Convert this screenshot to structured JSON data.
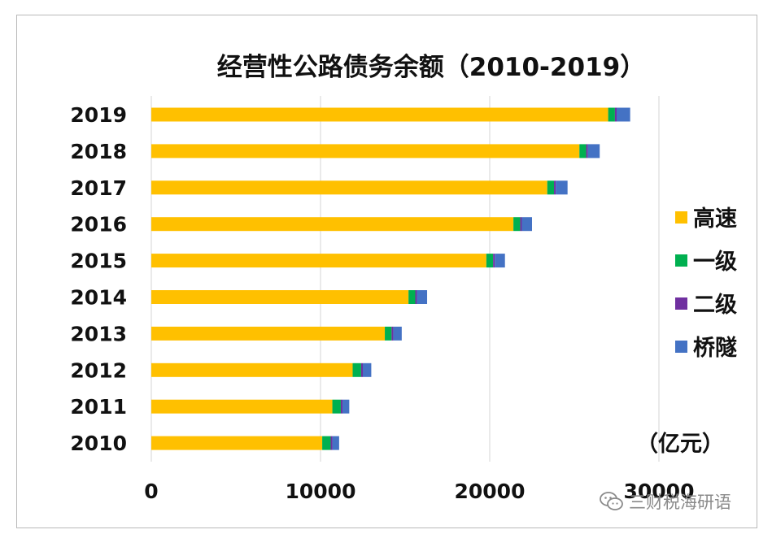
{
  "chart_data": {
    "type": "bar",
    "orientation": "horizontal",
    "stacked": true,
    "title": "经营性公路债务余额（2010-2019）",
    "unit_label": "（亿元）",
    "categories": [
      "2010",
      "2011",
      "2012",
      "2013",
      "2014",
      "2015",
      "2016",
      "2017",
      "2018",
      "2019"
    ],
    "series": [
      {
        "name": "高速",
        "color": "#FFC000",
        "values": [
          10100,
          10700,
          11900,
          13800,
          15200,
          19800,
          21400,
          23400,
          25300,
          27000
        ]
      },
      {
        "name": "一级",
        "color": "#00B050",
        "values": [
          500,
          500,
          500,
          400,
          400,
          400,
          400,
          400,
          400,
          400
        ]
      },
      {
        "name": "二级",
        "color": "#7030A0",
        "values": [
          100,
          100,
          100,
          100,
          100,
          100,
          100,
          100,
          100,
          100
        ]
      },
      {
        "name": "桥隧",
        "color": "#4472C4",
        "values": [
          400,
          400,
          500,
          500,
          600,
          600,
          600,
          700,
          700,
          800
        ]
      }
    ],
    "xlim": [
      0,
      30000
    ],
    "xticks": [
      "0",
      "10000",
      "20000",
      "30000"
    ],
    "grid": true,
    "legend_position": "right"
  },
  "watermark": {
    "text": "三财税海研语",
    "icon": "wechat-icon"
  }
}
